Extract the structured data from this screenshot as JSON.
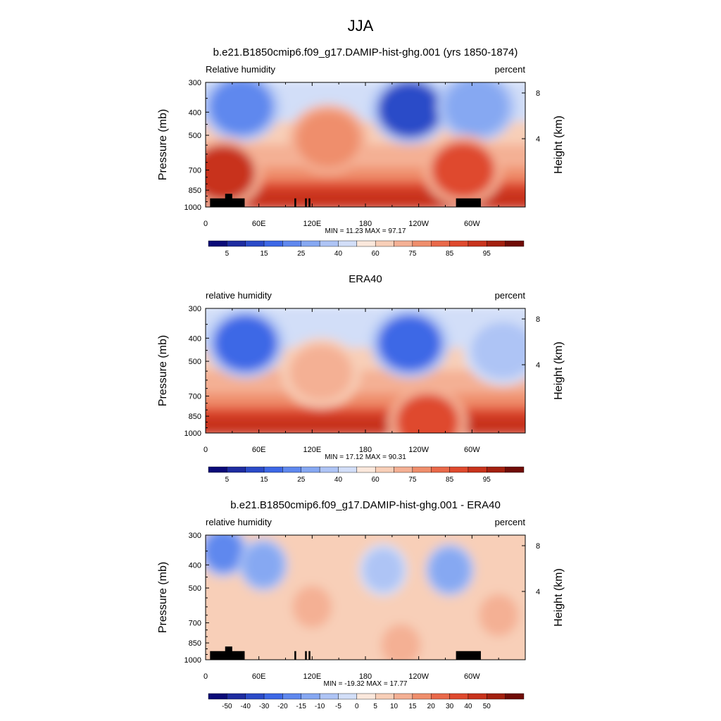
{
  "title": "JJA",
  "colors": {
    "full_field_palette": [
      "#0a0a78",
      "#1e2ca0",
      "#2b4bc8",
      "#3d68e6",
      "#5f88ee",
      "#86a8f2",
      "#aec4f5",
      "#d2def8",
      "#fbe8dc",
      "#f8cfb8",
      "#f4b094",
      "#ef8e6c",
      "#e9694a",
      "#df4a2e",
      "#c8331c",
      "#a3200f",
      "#700c06"
    ],
    "diff_palette": [
      "#0a0a78",
      "#1e2ca0",
      "#2b4bc8",
      "#3d68e6",
      "#5f88ee",
      "#86a8f2",
      "#aec4f5",
      "#d2def8",
      "#fbe8dc",
      "#f8cfb8",
      "#f4b094",
      "#ef8e6c",
      "#e9694a",
      "#df4a2e",
      "#c8331c",
      "#a3200f",
      "#700c06"
    ]
  },
  "chart_data": [
    {
      "type": "contour",
      "title": "b.e21.B1850cmip6.f09_g17.DAMIP-hist-ghg.001 (yrs 1850-1874)",
      "left_string": "Relative humidity",
      "right_string": "percent",
      "ylabel": "Pressure (mb)",
      "ylabel_right": "Height (km)",
      "x_ticks": [
        "0",
        "60E",
        "120E",
        "180",
        "120W",
        "60W"
      ],
      "y_ticks": [
        "300",
        "400",
        "500",
        "700",
        "850",
        "1000"
      ],
      "height_ticks": [
        "8",
        "4"
      ],
      "stats": "MIN =  11.23  MAX =  97.17",
      "colorbar_labels": [
        "5",
        "15",
        "25",
        "40",
        "60",
        "75",
        "85",
        "95"
      ],
      "levels": [
        5,
        10,
        15,
        20,
        25,
        30,
        40,
        50,
        60,
        70,
        75,
        80,
        85,
        90,
        95
      ],
      "topography": true,
      "features": [
        {
          "lon": 40,
          "p": 380,
          "value": 22
        },
        {
          "lon": 230,
          "p": 390,
          "value": 12
        },
        {
          "lon": 305,
          "p": 380,
          "value": 30
        },
        {
          "lon": 138,
          "p": 520,
          "value": 72
        },
        {
          "lon": 20,
          "p": 720,
          "value": 88
        },
        {
          "lon": 290,
          "p": 700,
          "value": 85
        }
      ]
    },
    {
      "type": "contour",
      "title": "ERA40",
      "left_string": "relative humidity",
      "right_string": "percent",
      "ylabel": "Pressure (mb)",
      "ylabel_right": "Height (km)",
      "x_ticks": [
        "0",
        "60E",
        "120E",
        "180",
        "120W",
        "60W"
      ],
      "y_ticks": [
        "300",
        "400",
        "500",
        "700",
        "850",
        "1000"
      ],
      "height_ticks": [
        "8",
        "4"
      ],
      "stats": "MIN =  17.12  MAX =  90.31",
      "colorbar_labels": [
        "5",
        "15",
        "25",
        "40",
        "60",
        "75",
        "85",
        "95"
      ],
      "levels": [
        5,
        10,
        15,
        20,
        25,
        30,
        40,
        50,
        60,
        70,
        75,
        80,
        85,
        90,
        95
      ],
      "topography": false,
      "features": [
        {
          "lon": 45,
          "p": 420,
          "value": 20
        },
        {
          "lon": 230,
          "p": 420,
          "value": 18
        },
        {
          "lon": 335,
          "p": 450,
          "value": 32
        },
        {
          "lon": 130,
          "p": 560,
          "value": 68
        },
        {
          "lon": 250,
          "p": 900,
          "value": 82
        }
      ]
    },
    {
      "type": "contour",
      "title": "b.e21.B1850cmip6.f09_g17.DAMIP-hist-ghg.001 - ERA40",
      "left_string": "relative humidity",
      "right_string": "percent",
      "ylabel": "Pressure (mb)",
      "ylabel_right": "Height (km)",
      "x_ticks": [
        "0",
        "60E",
        "120E",
        "180",
        "120W",
        "60W"
      ],
      "y_ticks": [
        "300",
        "400",
        "500",
        "700",
        "850",
        "1000"
      ],
      "height_ticks": [
        "8",
        "4"
      ],
      "stats": "MIN = -19.32  MAX =  17.77",
      "colorbar_labels": [
        "-50",
        "-40",
        "-30",
        "-20",
        "-15",
        "-10",
        "-5",
        "0",
        "5",
        "10",
        "15",
        "20",
        "30",
        "40",
        "50"
      ],
      "levels": [
        -50,
        -40,
        -30,
        -20,
        -15,
        -10,
        -5,
        0,
        5,
        10,
        15,
        20,
        30,
        40,
        50
      ],
      "topography": true,
      "features": [
        {
          "lon": 20,
          "p": 350,
          "value": -15
        },
        {
          "lon": 65,
          "p": 400,
          "value": -12
        },
        {
          "lon": 120,
          "p": 600,
          "value": 8
        },
        {
          "lon": 200,
          "p": 420,
          "value": -8
        },
        {
          "lon": 275,
          "p": 420,
          "value": -10
        },
        {
          "lon": 330,
          "p": 650,
          "value": 10
        },
        {
          "lon": 220,
          "p": 870,
          "value": 10
        }
      ]
    }
  ]
}
